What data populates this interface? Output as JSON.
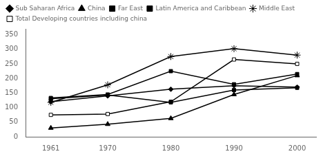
{
  "chart_data": {
    "type": "line",
    "x": [
      1961,
      1970,
      1980,
      1990,
      2000
    ],
    "series": [
      {
        "name": "Sub Saharan Africa",
        "color": "#000000",
        "marker": "diamond",
        "values": [
          120,
          140,
          163,
          175,
          170
        ]
      },
      {
        "name": "China",
        "color": "#000000",
        "marker": "triangle",
        "values": [
          30,
          43,
          63,
          145,
          210
        ]
      },
      {
        "name": "Far East",
        "color": "#000000",
        "marker": "square",
        "values": [
          130,
          143,
          118,
          160,
          168
        ]
      },
      {
        "name": "Latin America and Caribbean",
        "color": "#000000",
        "marker": "square",
        "values": [
          133,
          145,
          225,
          180,
          215
        ]
      },
      {
        "name": "Middle East",
        "color": "#000000",
        "marker": "star",
        "values": [
          118,
          178,
          275,
          302,
          280
        ]
      },
      {
        "name": "Total Developing countries including china",
        "color": "#000000",
        "marker": "open-square",
        "values": [
          75,
          78,
          120,
          265,
          250
        ]
      }
    ],
    "xlim": [
      1957,
      2003
    ],
    "xticks": [
      1961,
      1970,
      1980,
      1990,
      2000
    ],
    "ylim": [
      0,
      370
    ],
    "yticks": [
      0,
      50,
      100,
      150,
      200,
      250,
      300,
      350
    ],
    "grid": false,
    "legend": "top"
  }
}
